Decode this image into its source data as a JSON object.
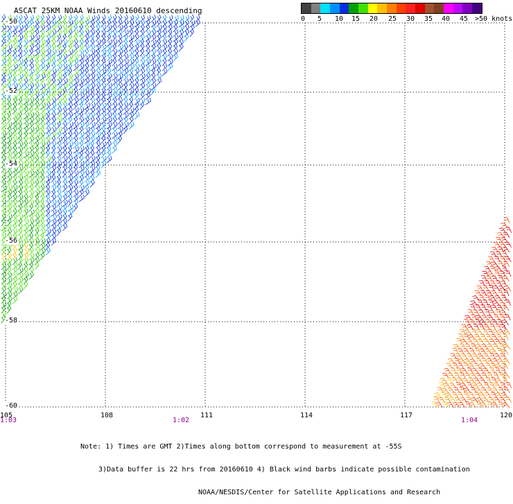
{
  "title": "ASCAT 25KM NOAA Winds 20160610 descending",
  "legend": {
    "colors": [
      "#404040",
      "#808080",
      "#00e0ff",
      "#0090ff",
      "#0030e0",
      "#00a000",
      "#40e000",
      "#ffff00",
      "#ffc000",
      "#ff8000",
      "#ff4000",
      "#ff2020",
      "#e00000",
      "#a05030",
      "#804020",
      "#ff00ff",
      "#c000ff",
      "#8000c0",
      "#400080"
    ],
    "labels": [
      "0",
      "5",
      "10",
      "15",
      "20",
      "25",
      "30",
      "35",
      "40",
      "45",
      ">50 knots"
    ]
  },
  "map": {
    "lat_labels": [
      "-50",
      "-52",
      "-54",
      "-56",
      "-58",
      "-60"
    ],
    "lon_labels": [
      "105",
      "108",
      "111",
      "114",
      "117",
      "120"
    ],
    "time_labels": [
      "1:03",
      "1:02",
      "1:04"
    ]
  },
  "notes": [
    "Note: 1) Times are GMT 2)Times along bottom correspond to measurement at -55S",
    "3)Data buffer is 22 hrs from 20160610 4) Black wind barbs indicate possible contamination",
    "NOAA/NESDIS/Center for Satellite Applications and Research"
  ]
}
